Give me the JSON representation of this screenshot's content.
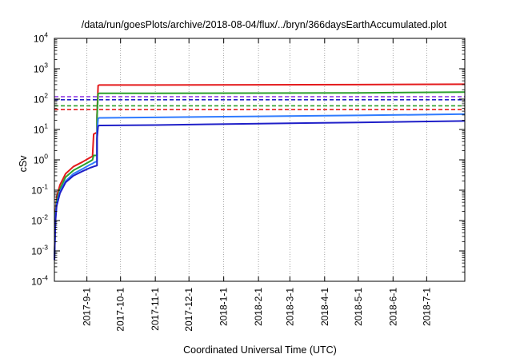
{
  "chart_data": {
    "type": "line",
    "title": "/data/run/goesPlots/archive/2018-08-04/flux/../bryn/366daysEarthAccumulated.plot",
    "xlabel": "Coordinated Universal Time (UTC)",
    "ylabel": "cSv",
    "x_scale": "time",
    "y_scale": "log",
    "xlim": [
      "2017-08-03",
      "2018-08-04"
    ],
    "ylim": [
      0.0001,
      10000
    ],
    "grid": "x-only dotted",
    "x_ticks": [
      "2017-9-1",
      "2017-10-1",
      "2017-11-1",
      "2017-12-1",
      "2018-1-1",
      "2018-2-1",
      "2018-3-1",
      "2018-4-1",
      "2018-5-1",
      "2018-6-1",
      "2018-7-1"
    ],
    "y_ticks": [
      {
        "base": "10",
        "exp": "-4"
      },
      {
        "base": "10",
        "exp": "-3"
      },
      {
        "base": "10",
        "exp": "-2"
      },
      {
        "base": "10",
        "exp": "-1"
      },
      {
        "base": "10",
        "exp": "0"
      },
      {
        "base": "10",
        "exp": "1"
      },
      {
        "base": "10",
        "exp": "2"
      },
      {
        "base": "10",
        "exp": "3"
      },
      {
        "base": "10",
        "exp": "4"
      }
    ],
    "series": [
      {
        "color": "#e41a1c",
        "style": "solid",
        "x": [
          "2017-08-03",
          "2017-08-04",
          "2017-08-05",
          "2017-08-08",
          "2017-08-13",
          "2017-08-20",
          "2017-08-28",
          "2017-09-04",
          "2017-09-06",
          "2017-09-07",
          "2017-09-10",
          "2017-09-10",
          "2017-09-11",
          "2017-09-12",
          "2017-11-01",
          "2018-02-01",
          "2018-05-01",
          "2018-08-04"
        ],
        "y": [
          0.0005,
          0.02,
          0.06,
          0.15,
          0.35,
          0.6,
          0.85,
          1.2,
          1.3,
          7,
          8,
          30,
          280,
          290,
          290,
          295,
          300,
          310
        ]
      },
      {
        "color": "#2ca02c",
        "style": "solid",
        "x": [
          "2017-08-03",
          "2017-08-04",
          "2017-08-05",
          "2017-08-08",
          "2017-08-13",
          "2017-08-20",
          "2017-08-28",
          "2017-09-04",
          "2017-09-06",
          "2017-09-07",
          "2017-09-10",
          "2017-09-10",
          "2017-09-11",
          "2017-09-12",
          "2017-11-01",
          "2018-02-01",
          "2018-05-01",
          "2018-08-04"
        ],
        "y": [
          0.0005,
          0.015,
          0.045,
          0.11,
          0.27,
          0.45,
          0.65,
          0.9,
          1.0,
          1.4,
          1.4,
          25,
          150,
          155,
          155,
          158,
          160,
          170
        ]
      },
      {
        "color": "#2f7bff",
        "style": "solid",
        "x": [
          "2017-08-03",
          "2017-08-04",
          "2017-08-05",
          "2017-08-08",
          "2017-08-13",
          "2017-08-20",
          "2017-08-28",
          "2017-09-04",
          "2017-09-06",
          "2017-09-07",
          "2017-09-10",
          "2017-09-10",
          "2017-09-11",
          "2017-09-12",
          "2017-11-01",
          "2018-02-01",
          "2018-05-01",
          "2018-08-04"
        ],
        "y": [
          0.0005,
          0.012,
          0.035,
          0.09,
          0.2,
          0.35,
          0.5,
          0.7,
          0.75,
          0.8,
          0.9,
          8,
          23,
          24,
          25,
          27,
          29,
          32
        ]
      },
      {
        "color": "#1f1fc8",
        "style": "solid",
        "x": [
          "2017-08-03",
          "2017-08-04",
          "2017-08-05",
          "2017-08-08",
          "2017-08-13",
          "2017-08-20",
          "2017-08-28",
          "2017-09-04",
          "2017-09-06",
          "2017-09-07",
          "2017-09-10",
          "2017-09-10",
          "2017-09-11",
          "2017-09-12",
          "2017-11-01",
          "2018-02-01",
          "2018-05-01",
          "2018-08-04"
        ],
        "y": [
          0.0005,
          0.01,
          0.03,
          0.08,
          0.18,
          0.3,
          0.42,
          0.55,
          0.58,
          0.6,
          0.65,
          5,
          13,
          13.5,
          14,
          15.5,
          17,
          19
        ]
      },
      {
        "color": "#8a2be2",
        "style": "dashed",
        "x": [
          "2017-08-03",
          "2018-08-04"
        ],
        "y": [
          120,
          120
        ]
      },
      {
        "color": "#1f1fc8",
        "style": "dashed",
        "x": [
          "2017-08-03",
          "2018-08-04"
        ],
        "y": [
          95,
          95
        ]
      },
      {
        "color": "#2ca02c",
        "style": "dashed",
        "x": [
          "2017-08-03",
          "2018-08-04"
        ],
        "y": [
          60,
          60
        ]
      },
      {
        "color": "#e41a1c",
        "style": "dashed",
        "x": [
          "2017-08-03",
          "2018-08-04"
        ],
        "y": [
          45,
          45
        ]
      }
    ]
  }
}
